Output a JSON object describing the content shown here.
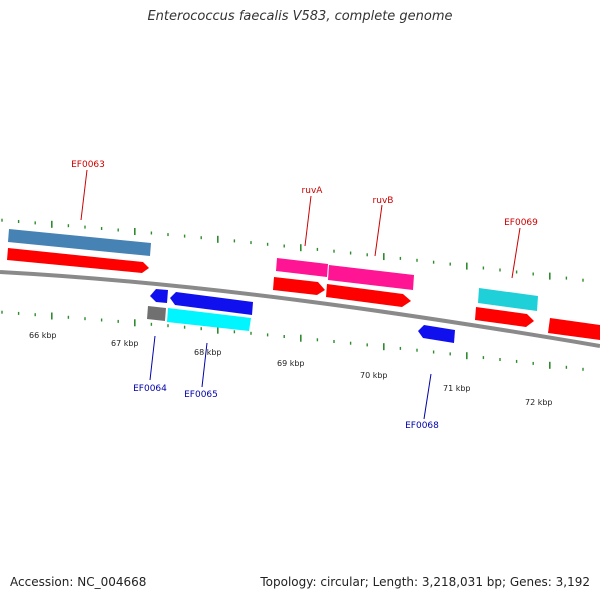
{
  "title": "Enterococcus faecalis V583, complete genome",
  "footer": {
    "accession": "Accession: NC_004668",
    "summary": "Topology: circular; Length: 3,218,031 bp; Genes: 3,192"
  },
  "colors": {
    "background": "#ffffff",
    "backbone": "#8a8a8a",
    "tick": "#2e8b2e",
    "forward_cds": "#ff0000",
    "reverse_cds": "#1010ee",
    "gene_steelblue": "#4682b4",
    "gene_magenta": "#ff1493",
    "gene_cyan": "#20d0d8",
    "gene_gray": "#707070",
    "forward_label": "#cc0000",
    "reverse_label": "#0000aa"
  },
  "scale_labels": [
    "66 kbp",
    "67 kbp",
    "68 kbp",
    "69 kbp",
    "70 kbp",
    "71 kbp",
    "72 kbp"
  ],
  "gene_labels": [
    {
      "text": "EF0063",
      "strand": "forward"
    },
    {
      "text": "ruvA",
      "strand": "forward"
    },
    {
      "text": "ruvB",
      "strand": "forward"
    },
    {
      "text": "EF0069",
      "strand": "forward"
    },
    {
      "text": "EF0064",
      "strand": "reverse"
    },
    {
      "text": "EF0065",
      "strand": "reverse"
    },
    {
      "text": "EF0068",
      "strand": "reverse"
    }
  ]
}
